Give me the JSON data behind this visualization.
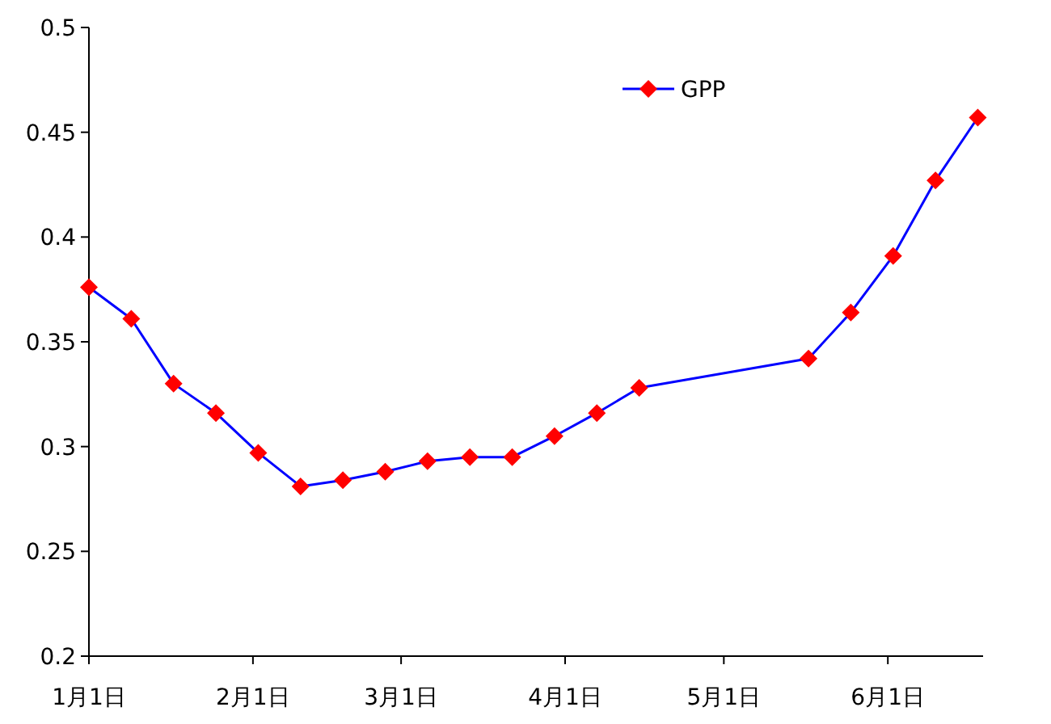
{
  "chart_data": {
    "type": "line",
    "x": [
      "--01-01",
      "--01-09",
      "--01-17",
      "--01-25",
      "--02-02",
      "--02-10",
      "--02-18",
      "--02-26",
      "--03-06",
      "--03-14",
      "--03-22",
      "--03-30",
      "--04-07",
      "--04-15",
      "--05-17",
      "--05-25",
      "--06-02",
      "--06-10",
      "--06-18"
    ],
    "series": [
      {
        "name": "GPP",
        "color": "#0000ff",
        "colors": [
          "#ff0000",
          "#ff0000",
          "#ff0000",
          "#ff0000",
          "#ff0000",
          "#ff0000",
          "#ff0000",
          "#ff0000",
          "#ff0000",
          "#ff0000",
          "#ff0000",
          "#ff0000",
          "#ff0000",
          "#ff0000",
          "#ff0000",
          "#ff0000",
          "#ff0000",
          "#ff0000",
          "#ff0000"
        ],
        "values": [
          0.376,
          0.361,
          0.33,
          0.316,
          0.297,
          0.281,
          0.284,
          0.288,
          0.293,
          0.295,
          0.295,
          0.305,
          0.316,
          0.328,
          0.342,
          0.364,
          0.391,
          0.427,
          0.457
        ]
      }
    ],
    "xlim": [
      "--01-01",
      "--06-19"
    ],
    "xticks": [
      {
        "value": "--01-01",
        "label": "1月1日"
      },
      {
        "value": "--02-01",
        "label": "2月1日"
      },
      {
        "value": "--03-01",
        "label": "3月1日"
      },
      {
        "value": "--04-01",
        "label": "4月1日"
      },
      {
        "value": "--05-01",
        "label": "5月1日"
      },
      {
        "value": "--06-01",
        "label": "6月1日"
      }
    ],
    "ylim": [
      0.2,
      0.5
    ],
    "yticks": [
      0.2,
      0.25,
      0.3,
      0.35,
      0.4,
      0.45,
      0.5
    ],
    "marker": "diamond",
    "line_style": "solid",
    "grid": false,
    "legend": "top right"
  }
}
